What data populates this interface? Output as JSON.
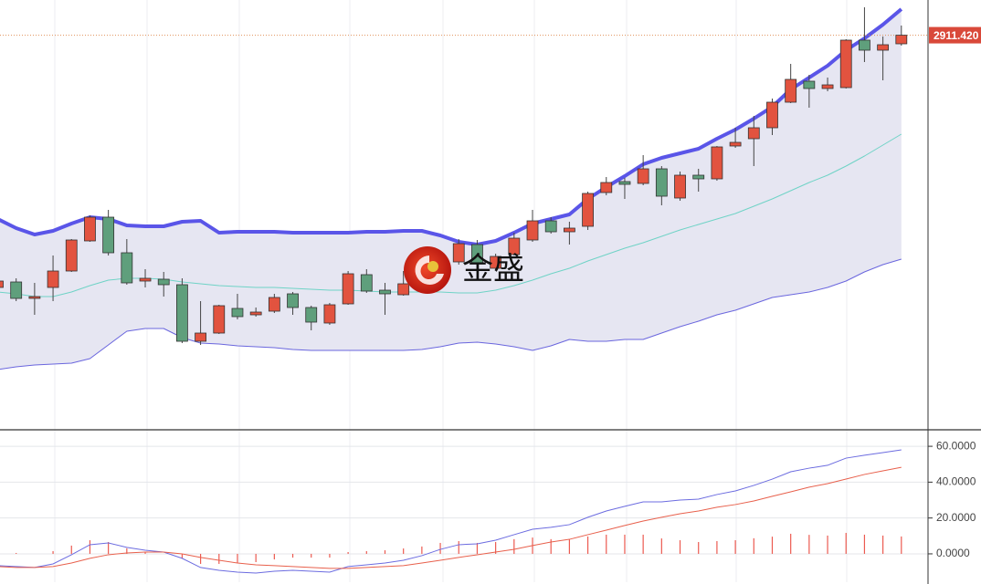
{
  "chart_data": [
    {
      "type": "candlestick",
      "watermark": "金盛",
      "open": [
        2635,
        2641,
        2623,
        2635,
        2653,
        2686,
        2712,
        2673,
        2642,
        2644,
        2638,
        2576,
        2585,
        2612,
        2605,
        2609,
        2628,
        2613,
        2596,
        2617,
        2649,
        2632,
        2627,
        2640,
        2653,
        2663,
        2682,
        2656,
        2671,
        2687,
        2708,
        2696,
        2702,
        2739,
        2751,
        2749,
        2765,
        2733,
        2758,
        2754,
        2790,
        2798,
        2810,
        2838,
        2861,
        2853,
        2854,
        2906,
        2895,
        2902
      ],
      "high": [
        2645,
        2645,
        2640,
        2670,
        2688,
        2714,
        2720,
        2688,
        2655,
        2652,
        2645,
        2620,
        2616,
        2628,
        2613,
        2628,
        2630,
        2615,
        2618,
        2653,
        2655,
        2640,
        2653,
        2665,
        2668,
        2688,
        2687,
        2672,
        2695,
        2720,
        2712,
        2707,
        2740,
        2756,
        2755,
        2780,
        2768,
        2762,
        2765,
        2790,
        2810,
        2823,
        2842,
        2880,
        2868,
        2865,
        2907,
        2942,
        2910,
        2922
      ],
      "low": [
        2632,
        2620,
        2605,
        2620,
        2652,
        2685,
        2670,
        2638,
        2635,
        2625,
        2574,
        2572,
        2584,
        2600,
        2603,
        2607,
        2605,
        2588,
        2594,
        2616,
        2629,
        2605,
        2626,
        2638,
        2650,
        2660,
        2658,
        2654,
        2670,
        2685,
        2694,
        2682,
        2698,
        2736,
        2732,
        2747,
        2725,
        2730,
        2740,
        2752,
        2788,
        2768,
        2802,
        2837,
        2832,
        2850,
        2853,
        2882,
        2862,
        2900
      ],
      "close": [
        2642,
        2623,
        2625,
        2653,
        2687,
        2712,
        2673,
        2640,
        2645,
        2638,
        2576,
        2585,
        2615,
        2603,
        2608,
        2624,
        2613,
        2597,
        2616,
        2650,
        2631,
        2628,
        2639,
        2660,
        2662,
        2683,
        2661,
        2669,
        2689,
        2708,
        2696,
        2700,
        2738,
        2750,
        2748,
        2765,
        2735,
        2758,
        2754,
        2789,
        2794,
        2810,
        2838,
        2863,
        2853,
        2857,
        2906,
        2895,
        2901,
        2911.42
      ],
      "up_color": "#e2533f",
      "down_color": "#5f9f7c",
      "bands": [
        {
          "color": "#5a55e8",
          "values": [
            2710,
            2700,
            2693,
            2697,
            2705,
            2712,
            2710,
            2703,
            2702,
            2702,
            2707,
            2708,
            2695,
            2696,
            2696,
            2696,
            2695,
            2695,
            2695,
            2695,
            2696,
            2696,
            2697,
            2697,
            2692,
            2685,
            2682,
            2686,
            2695,
            2705,
            2710,
            2715,
            2732,
            2745,
            2757,
            2770,
            2777,
            2782,
            2787,
            2798,
            2808,
            2820,
            2833,
            2852,
            2865,
            2878,
            2895,
            2908,
            2923,
            2940
          ]
        },
        {
          "color": "#6fd3c6",
          "values": [
            2630,
            2628,
            2625,
            2625,
            2630,
            2637,
            2643,
            2645,
            2645,
            2644,
            2641,
            2639,
            2637,
            2636,
            2635,
            2635,
            2634,
            2633,
            2632,
            2632,
            2631,
            2630,
            2630,
            2630,
            2630,
            2629,
            2629,
            2632,
            2637,
            2643,
            2650,
            2656,
            2664,
            2671,
            2678,
            2684,
            2691,
            2698,
            2704,
            2710,
            2716,
            2724,
            2732,
            2741,
            2750,
            2758,
            2768,
            2779,
            2791,
            2803
          ]
        },
        {
          "color": "#6a66de",
          "values": [
            2545,
            2548,
            2550,
            2551,
            2552,
            2557,
            2572,
            2587,
            2590,
            2590,
            2580,
            2574,
            2573,
            2571,
            2570,
            2569,
            2567,
            2566,
            2566,
            2566,
            2566,
            2566,
            2566,
            2567,
            2570,
            2574,
            2575,
            2573,
            2570,
            2566,
            2571,
            2578,
            2576,
            2576,
            2578,
            2578,
            2585,
            2592,
            2598,
            2605,
            2610,
            2617,
            2624,
            2627,
            2630,
            2635,
            2642,
            2652,
            2660,
            2666
          ]
        }
      ],
      "band_fill": "#e6e6f2",
      "ylim": [
        2480,
        2950
      ],
      "last_price": {
        "value": 2911.42,
        "label": "2911.420"
      },
      "last_price_color": "#d9493a"
    },
    {
      "type": "line",
      "series": [
        {
          "color": "#6c6ce0",
          "values": [
            -6.6,
            -7.1,
            -7.6,
            -5.6,
            -0.5,
            5.1,
            6.1,
            3.6,
            2.0,
            1.0,
            -2.5,
            -7.6,
            -9.2,
            -10.2,
            -10.7,
            -9.7,
            -9.2,
            -9.7,
            -10.2,
            -7.1,
            -6.1,
            -5.1,
            -3.6,
            -1.0,
            2.5,
            5.1,
            5.6,
            7.6,
            10.7,
            13.7,
            14.8,
            16.3,
            20.4,
            23.9,
            26.5,
            29.0,
            29.0,
            30.0,
            30.5,
            33.1,
            35.1,
            38.2,
            41.7,
            45.8,
            47.8,
            49.4,
            53.4,
            55.0,
            56.5,
            58.0
          ]
        },
        {
          "color": "#e8604c",
          "values": [
            -7.1,
            -7.6,
            -7.6,
            -7.1,
            -5.1,
            -2.5,
            -0.5,
            0.5,
            1.0,
            1.0,
            0.0,
            -2.0,
            -3.6,
            -5.1,
            -6.1,
            -6.6,
            -7.1,
            -7.6,
            -8.1,
            -8.1,
            -7.6,
            -7.1,
            -6.6,
            -5.1,
            -3.6,
            -2.0,
            -0.5,
            1.0,
            2.5,
            4.6,
            6.6,
            8.1,
            10.7,
            13.2,
            15.8,
            18.3,
            20.4,
            22.4,
            23.9,
            26.0,
            27.5,
            29.5,
            32.1,
            34.6,
            37.2,
            39.2,
            41.7,
            44.3,
            46.3,
            48.3
          ]
        }
      ],
      "bars": {
        "color": "#ec5a50",
        "values": [
          0.5,
          0.5,
          0.0,
          1.5,
          4.6,
          7.6,
          6.6,
          3.1,
          1.0,
          0.0,
          -2.5,
          -5.6,
          -5.6,
          -5.1,
          -4.6,
          -3.1,
          -2.1,
          -2.1,
          -2.1,
          1.0,
          1.5,
          2.0,
          3.0,
          4.1,
          6.1,
          7.1,
          6.1,
          6.6,
          8.2,
          9.1,
          8.2,
          8.2,
          9.7,
          10.7,
          10.7,
          10.7,
          8.6,
          7.6,
          6.6,
          7.1,
          7.6,
          8.7,
          9.6,
          11.2,
          10.6,
          10.2,
          11.7,
          10.7,
          10.2,
          9.7
        ]
      },
      "ylim": [
        -15.8,
        68.7
      ],
      "yticks": [
        {
          "value": 0,
          "label": "0.0000"
        },
        {
          "value": 20,
          "label": "20.0000"
        },
        {
          "value": 40,
          "label": "40.0000"
        },
        {
          "value": 60,
          "label": "60.0000"
        }
      ],
      "grid": true
    }
  ]
}
